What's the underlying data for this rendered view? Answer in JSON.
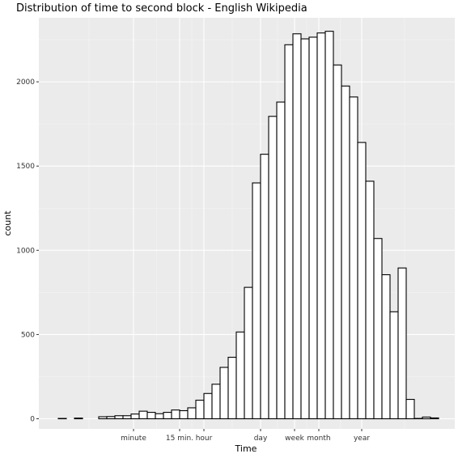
{
  "chart_data": {
    "type": "bar",
    "title": "Distribution of time to second block - English Wikipedia",
    "xlabel": "Time",
    "ylabel": "count",
    "ylim": [
      -60,
      2380
    ],
    "y_ticks": [
      0,
      500,
      1000,
      1500,
      2000
    ],
    "x_ticks": [
      "minute",
      "15 min.",
      "hour",
      "day",
      "week",
      "month",
      "year"
    ],
    "grid": true,
    "background": "#ebebeb",
    "bar_fill": "#ffffff",
    "bar_stroke": "#000000",
    "values": [
      2,
      0,
      4,
      0,
      0,
      12,
      13,
      18,
      18,
      28,
      45,
      38,
      30,
      38,
      52,
      48,
      65,
      110,
      150,
      205,
      305,
      365,
      515,
      780,
      1400,
      1570,
      1795,
      1880,
      2220,
      2285,
      2255,
      2265,
      2290,
      2300,
      2100,
      1975,
      1910,
      1640,
      1410,
      1070,
      855,
      635,
      895,
      115,
      2,
      10,
      5
    ]
  }
}
